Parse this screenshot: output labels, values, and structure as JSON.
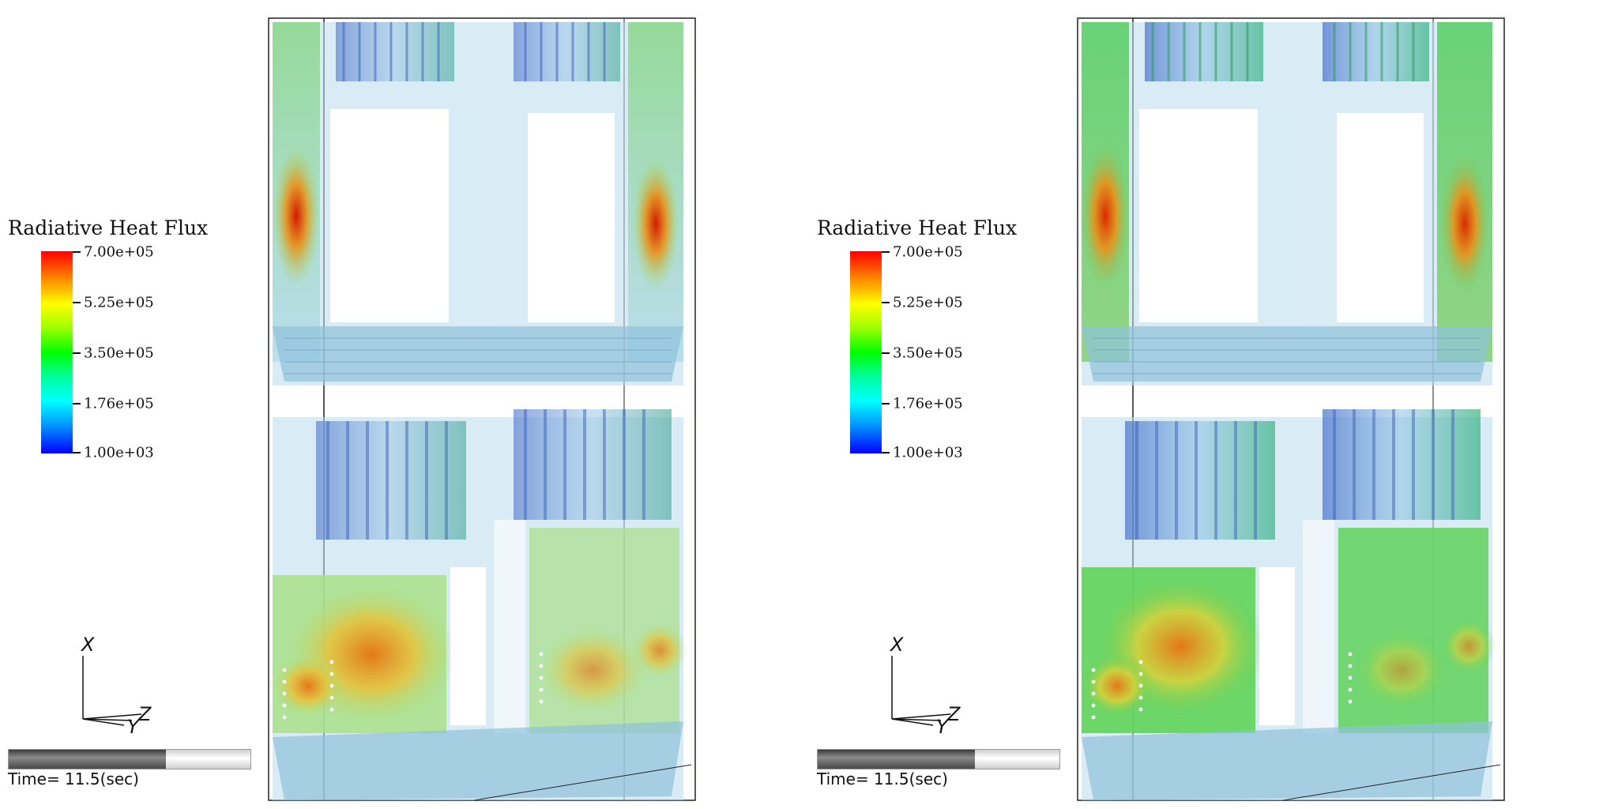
{
  "views": [
    {
      "legend": {
        "title": "Radiative Heat Flux",
        "ticks": [
          "7.00e+05",
          "5.25e+05",
          "3.50e+05",
          "1.76e+05",
          "1.00e+03"
        ],
        "range": [
          1000,
          700000
        ]
      },
      "axes": {
        "x": "X",
        "y": "Y",
        "z": "Z"
      },
      "time": {
        "label": "Time= 11.5(sec)",
        "progress": 0.65
      }
    },
    {
      "legend": {
        "title": "Radiative Heat Flux",
        "ticks": [
          "7.00e+05",
          "5.25e+05",
          "3.50e+05",
          "1.76e+05",
          "1.00e+03"
        ],
        "range": [
          1000,
          700000
        ]
      },
      "axes": {
        "x": "X",
        "y": "Y",
        "z": "Z"
      },
      "time": {
        "label": "Time= 11.5(sec)",
        "progress": 0.65
      }
    }
  ],
  "colormap": [
    "#0000ff",
    "#00ffff",
    "#00ff00",
    "#ffff00",
    "#ff0000"
  ]
}
